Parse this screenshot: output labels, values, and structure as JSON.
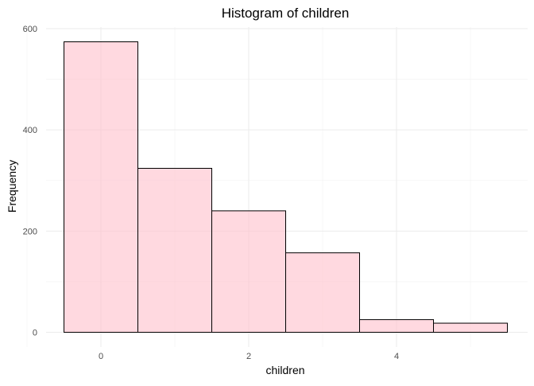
{
  "chart_data": {
    "type": "histogram",
    "title": "Histogram of children",
    "xlabel": "children",
    "ylabel": "Frequency",
    "bins": [
      {
        "x": 0,
        "count": 574
      },
      {
        "x": 1,
        "count": 324
      },
      {
        "x": 2,
        "count": 240
      },
      {
        "x": 3,
        "count": 157
      },
      {
        "x": 4,
        "count": 25
      },
      {
        "x": 5,
        "count": 18
      }
    ],
    "bin_width": 1,
    "xlim": [
      -0.5,
      5.5
    ],
    "ylim": [
      0,
      600
    ],
    "x_ticks": [
      0,
      2,
      4
    ],
    "y_ticks": [
      0,
      200,
      400,
      600
    ],
    "bar_fill": "#ffc0cb",
    "bar_fill_opacity": 0.6,
    "bar_outline": "#000000",
    "grid": true
  }
}
